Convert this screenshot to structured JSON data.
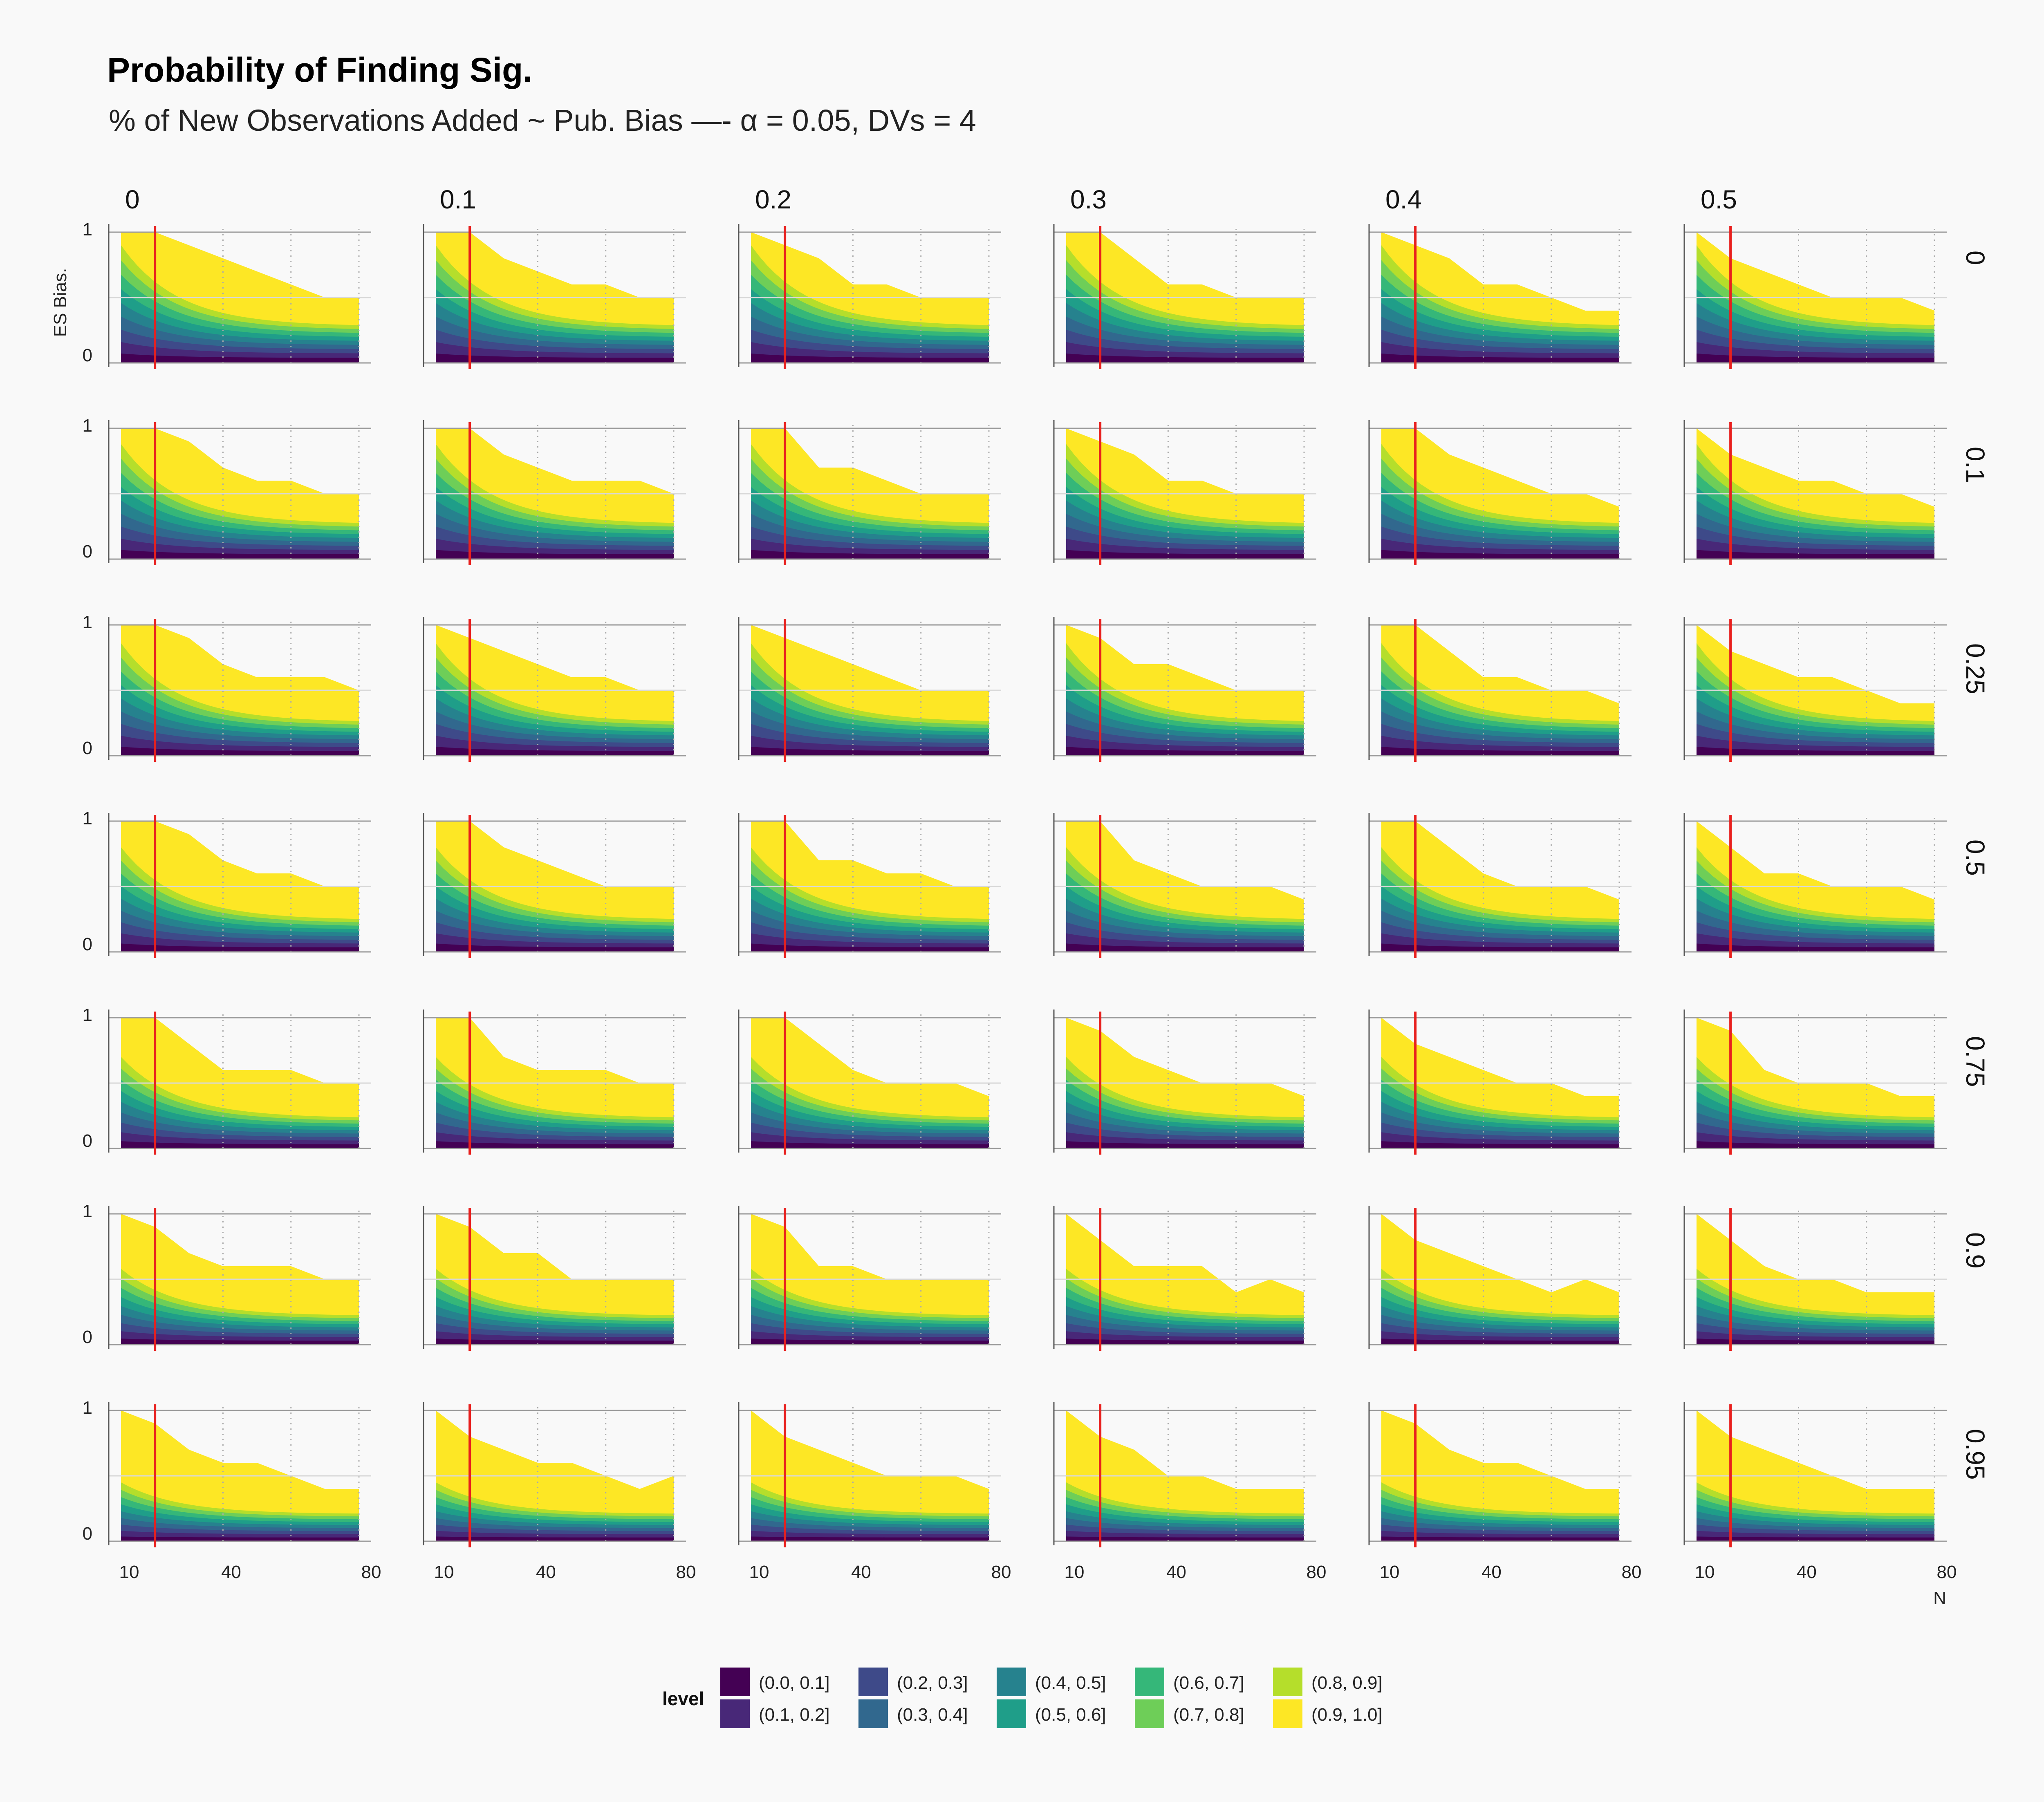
{
  "title": "Probability of Finding Sig.",
  "subtitle": "% of New Observations Added ~ Pub. Bias —- α = 0.05, DVs = 4",
  "chart_data": {
    "type": "area",
    "kind": "faceted filled contour plot",
    "xlabel": "N",
    "ylabel": "ES Bias.",
    "x_ticks": [
      10,
      40,
      80
    ],
    "y_ticks": [
      0,
      1
    ],
    "xlim": [
      10,
      80
    ],
    "ylim": [
      0,
      1
    ],
    "reference_line": {
      "x": 20,
      "color": "#e8201e"
    },
    "grid": true,
    "col_facet_labels": [
      "0",
      "0.1",
      "0.2",
      "0.3",
      "0.4",
      "0.5"
    ],
    "row_facet_labels": [
      "0",
      "0.1",
      "0.25",
      "0.5",
      "0.75",
      "0.9",
      "0.95"
    ],
    "legend": {
      "title": "level",
      "position": "bottom",
      "levels": [
        "(0.0, 0.1]",
        "(0.1, 0.2]",
        "(0.2, 0.3]",
        "(0.3, 0.4]",
        "(0.4, 0.5]",
        "(0.5, 0.6]",
        "(0.6, 0.7]",
        "(0.7, 0.8]",
        "(0.8, 0.9]",
        "(0.9, 1.0]"
      ],
      "colors": [
        "#440154",
        "#482878",
        "#3e4a89",
        "#31688e",
        "#26828e",
        "#1f9e89",
        "#35b779",
        "#6ece58",
        "#b5de2b",
        "#fde725"
      ]
    },
    "n_values": [
      10,
      20,
      30,
      40,
      50,
      60,
      70,
      80
    ],
    "yellow_boundary_rows": [
      [
        [
          1,
          1,
          0.9,
          0.8,
          0.7,
          0.6,
          0.5,
          0.5
        ],
        [
          1,
          1,
          0.8,
          0.7,
          0.6,
          0.6,
          0.5,
          0.5
        ],
        [
          1,
          0.9,
          0.8,
          0.6,
          0.6,
          0.5,
          0.5,
          0.5
        ],
        [
          1,
          1,
          0.8,
          0.6,
          0.6,
          0.5,
          0.5,
          0.5
        ],
        [
          1,
          0.9,
          0.8,
          0.6,
          0.6,
          0.5,
          0.4,
          0.4
        ],
        [
          1,
          0.8,
          0.7,
          0.6,
          0.5,
          0.5,
          0.5,
          0.4
        ]
      ],
      [
        [
          1,
          1,
          0.9,
          0.7,
          0.6,
          0.6,
          0.5,
          0.5
        ],
        [
          1,
          1,
          0.8,
          0.7,
          0.6,
          0.6,
          0.6,
          0.5
        ],
        [
          1,
          1,
          0.7,
          0.7,
          0.6,
          0.5,
          0.5,
          0.5
        ],
        [
          1,
          0.9,
          0.8,
          0.6,
          0.6,
          0.5,
          0.5,
          0.5
        ],
        [
          1,
          1,
          0.8,
          0.7,
          0.6,
          0.5,
          0.5,
          0.4
        ],
        [
          1,
          0.8,
          0.7,
          0.6,
          0.6,
          0.5,
          0.5,
          0.4
        ]
      ],
      [
        [
          1,
          1,
          0.9,
          0.7,
          0.6,
          0.6,
          0.6,
          0.5
        ],
        [
          1,
          0.9,
          0.8,
          0.7,
          0.6,
          0.6,
          0.5,
          0.5
        ],
        [
          1,
          0.9,
          0.8,
          0.7,
          0.6,
          0.5,
          0.5,
          0.5
        ],
        [
          1,
          0.9,
          0.7,
          0.7,
          0.6,
          0.5,
          0.5,
          0.5
        ],
        [
          1,
          1,
          0.8,
          0.6,
          0.6,
          0.5,
          0.5,
          0.4
        ],
        [
          1,
          0.8,
          0.7,
          0.6,
          0.6,
          0.5,
          0.4,
          0.4
        ]
      ],
      [
        [
          1,
          1,
          0.9,
          0.7,
          0.6,
          0.6,
          0.5,
          0.5
        ],
        [
          1,
          1,
          0.8,
          0.7,
          0.6,
          0.5,
          0.5,
          0.5
        ],
        [
          1,
          1,
          0.7,
          0.7,
          0.6,
          0.6,
          0.5,
          0.5
        ],
        [
          1,
          1,
          0.7,
          0.6,
          0.5,
          0.5,
          0.5,
          0.4
        ],
        [
          1,
          1,
          0.8,
          0.6,
          0.5,
          0.5,
          0.5,
          0.4
        ],
        [
          1,
          0.8,
          0.6,
          0.6,
          0.5,
          0.5,
          0.5,
          0.4
        ]
      ],
      [
        [
          1,
          1,
          0.8,
          0.6,
          0.6,
          0.6,
          0.5,
          0.5
        ],
        [
          1,
          1,
          0.7,
          0.6,
          0.6,
          0.6,
          0.5,
          0.5
        ],
        [
          1,
          1,
          0.8,
          0.6,
          0.5,
          0.5,
          0.5,
          0.4
        ],
        [
          1,
          0.9,
          0.7,
          0.6,
          0.5,
          0.5,
          0.5,
          0.4
        ],
        [
          1,
          0.8,
          0.7,
          0.6,
          0.5,
          0.5,
          0.4,
          0.4
        ],
        [
          1,
          0.9,
          0.6,
          0.5,
          0.5,
          0.5,
          0.4,
          0.4
        ]
      ],
      [
        [
          1,
          0.9,
          0.7,
          0.6,
          0.6,
          0.6,
          0.5,
          0.5
        ],
        [
          1,
          0.9,
          0.7,
          0.7,
          0.5,
          0.5,
          0.5,
          0.5
        ],
        [
          1,
          0.9,
          0.6,
          0.6,
          0.5,
          0.5,
          0.5,
          0.5
        ],
        [
          1,
          0.8,
          0.6,
          0.6,
          0.6,
          0.4,
          0.5,
          0.4
        ],
        [
          1,
          0.8,
          0.7,
          0.6,
          0.5,
          0.4,
          0.5,
          0.4
        ],
        [
          1,
          0.8,
          0.6,
          0.5,
          0.5,
          0.4,
          0.4,
          0.4
        ]
      ],
      [
        [
          1,
          0.9,
          0.7,
          0.6,
          0.6,
          0.5,
          0.4,
          0.4
        ],
        [
          1,
          0.8,
          0.7,
          0.6,
          0.6,
          0.5,
          0.4,
          0.5
        ],
        [
          1,
          0.8,
          0.7,
          0.6,
          0.5,
          0.5,
          0.5,
          0.4
        ],
        [
          1,
          0.8,
          0.7,
          0.5,
          0.5,
          0.4,
          0.4,
          0.4
        ],
        [
          1,
          0.9,
          0.7,
          0.6,
          0.6,
          0.5,
          0.4,
          0.4
        ],
        [
          1,
          0.8,
          0.7,
          0.6,
          0.5,
          0.4,
          0.4,
          0.4
        ]
      ]
    ],
    "green_boundary_at_n10_by_row": [
      0.9,
      0.88,
      0.86,
      0.8,
      0.7,
      0.58,
      0.45
    ]
  }
}
